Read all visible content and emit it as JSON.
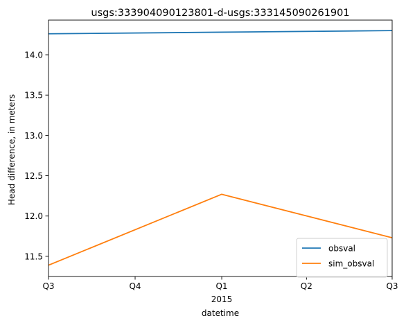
{
  "chart_data": {
    "type": "line",
    "title": "usgs:333904090123801-d-usgs:333145090261901",
    "xlabel": "datetime",
    "ylabel": "Head difference, in meters",
    "x_ticks": [
      {
        "label": "Q3",
        "sublabel": "",
        "date": "2014-07-01"
      },
      {
        "label": "Q4",
        "sublabel": "",
        "date": "2014-10-01"
      },
      {
        "label": "Q1",
        "sublabel": "2015",
        "date": "2015-01-01"
      },
      {
        "label": "Q2",
        "sublabel": "",
        "date": "2015-04-01"
      },
      {
        "label": "Q3",
        "sublabel": "",
        "date": "2015-07-01"
      }
    ],
    "xlim": [
      "2014-07-01",
      "2015-07-01"
    ],
    "y_ticks": [
      11.5,
      12.0,
      12.5,
      13.0,
      13.5,
      14.0
    ],
    "ylim": [
      11.25,
      14.43
    ],
    "grid": false,
    "legend_position": "lower-right",
    "series": [
      {
        "name": "obsval",
        "color": "#1f77b4",
        "x": [
          "2014-07-01",
          "2015-01-01",
          "2015-07-01"
        ],
        "values": [
          14.26,
          14.28,
          14.3
        ]
      },
      {
        "name": "sim_obsval",
        "color": "#ff7f0e",
        "x": [
          "2014-07-01",
          "2015-01-01",
          "2015-07-01"
        ],
        "values": [
          11.39,
          12.27,
          11.73
        ]
      }
    ]
  }
}
